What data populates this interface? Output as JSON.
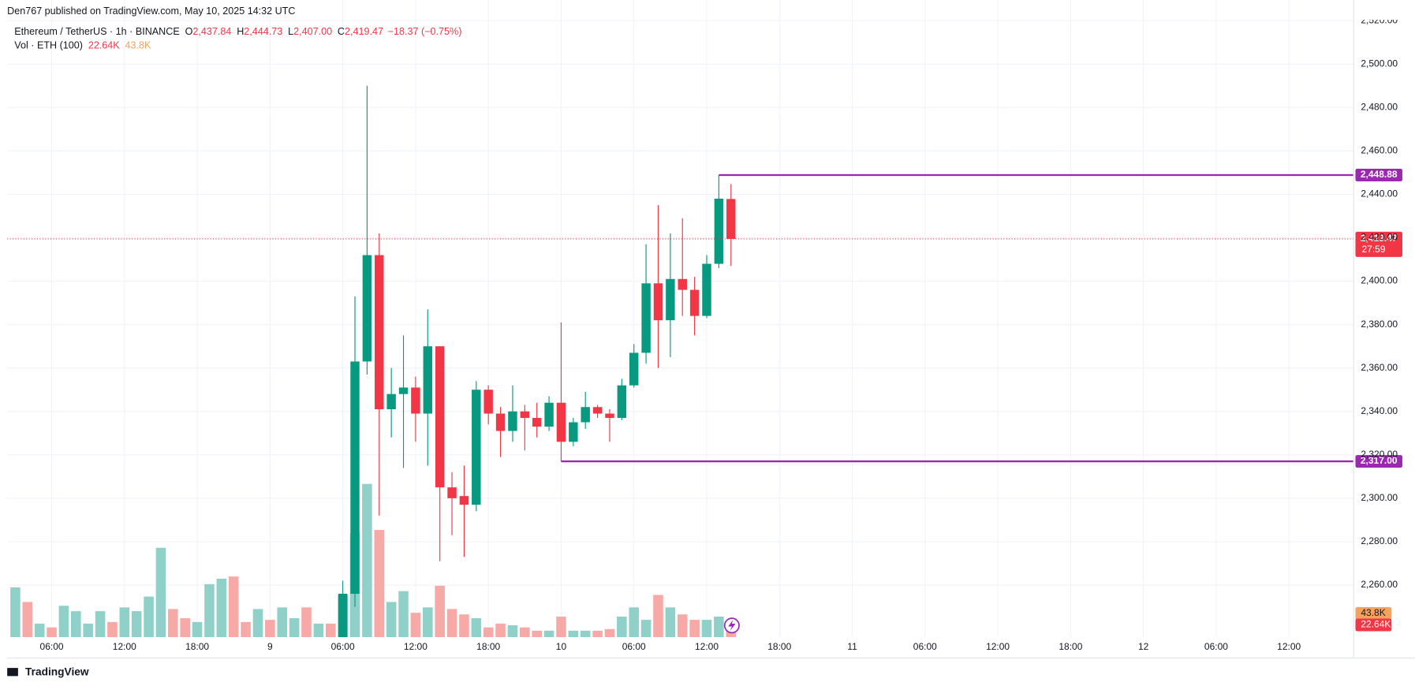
{
  "header": "Den767 published on TradingView.com, May 10, 2025 14:32 UTC",
  "brand": "TradingView",
  "chart_data": {
    "type": "candlestick",
    "legend": {
      "symbol": "Ethereum / TetherUS · 1h · BINANCE",
      "ohlc": [
        {
          "key": "O",
          "text": "2,437.84"
        },
        {
          "key": "H",
          "text": "2,444.73"
        },
        {
          "key": "L",
          "text": "2,407.00"
        },
        {
          "key": "C",
          "text": "2,419.47"
        }
      ],
      "change": "−18.37 (−0.75%)"
    },
    "colors": {
      "up": "#089981",
      "down": "#f23645",
      "volume_up": "#8fd1c8",
      "volume_down": "#f7a9a7",
      "level": "#9c27b0",
      "grid": "#f0f3fa",
      "volume_ma": "#f5a35c"
    },
    "x": [
      "8 03:00",
      "8 04:00",
      "8 05:00",
      "8 06:00",
      "8 07:00",
      "8 08:00",
      "8 09:00",
      "8 10:00",
      "8 11:00",
      "8 12:00",
      "8 13:00",
      "8 14:00",
      "8 15:00",
      "8 16:00",
      "8 17:00",
      "8 18:00",
      "8 19:00",
      "8 20:00",
      "8 21:00",
      "8 22:00",
      "8 23:00",
      "9 00:00",
      "9 01:00",
      "9 02:00",
      "9 03:00",
      "9 04:00",
      "9 05:00",
      "9 06:00",
      "9 07:00",
      "9 08:00",
      "9 09:00",
      "9 10:00",
      "9 11:00",
      "9 12:00",
      "9 13:00",
      "9 14:00",
      "9 15:00",
      "9 16:00",
      "9 17:00",
      "9 18:00",
      "9 19:00",
      "9 20:00",
      "9 21:00",
      "9 22:00",
      "9 23:00",
      "10 00:00",
      "10 01:00",
      "10 02:00",
      "10 03:00",
      "10 04:00",
      "10 05:00",
      "10 06:00",
      "10 07:00",
      "10 08:00",
      "10 09:00",
      "10 10:00",
      "10 11:00",
      "10 12:00",
      "10 13:00",
      "10 14:00"
    ],
    "open": [
      null,
      null,
      null,
      null,
      null,
      null,
      null,
      null,
      null,
      null,
      null,
      null,
      null,
      null,
      null,
      null,
      null,
      null,
      null,
      null,
      null,
      null,
      null,
      null,
      null,
      null,
      null,
      2236,
      2256,
      2363,
      2412,
      2341,
      2348,
      2351,
      2339,
      2370,
      2305,
      2301,
      2297,
      2350,
      2339,
      2331,
      2340,
      2337,
      2333,
      2344,
      2326,
      2335,
      2342,
      2339,
      2337,
      2352,
      2367,
      2399,
      2382,
      2401,
      2396,
      2384,
      2408,
      2437.84
    ],
    "high": [
      null,
      null,
      null,
      null,
      null,
      null,
      null,
      null,
      null,
      null,
      null,
      null,
      null,
      null,
      null,
      null,
      null,
      null,
      null,
      null,
      null,
      null,
      null,
      null,
      null,
      null,
      null,
      2262,
      2393,
      2490,
      2422,
      2360,
      2375,
      2356,
      2387,
      2370,
      2312,
      2315,
      2354,
      2352,
      2342,
      2352,
      2343,
      2344,
      2347,
      2381,
      2337,
      2349,
      2343,
      2341,
      2355,
      2371,
      2417,
      2435,
      2422,
      2429,
      2402,
      2412,
      2448.88,
      2444.73
    ],
    "low": [
      null,
      null,
      null,
      null,
      null,
      null,
      null,
      null,
      null,
      null,
      null,
      null,
      null,
      null,
      null,
      null,
      null,
      null,
      null,
      null,
      null,
      null,
      null,
      null,
      null,
      null,
      null,
      2228,
      2250,
      2357,
      2292,
      2328,
      2314,
      2326,
      2315,
      2271,
      2283,
      2273,
      2294,
      2334,
      2319,
      2326,
      2322,
      2328,
      2331,
      2317,
      2324,
      2332,
      2337,
      2326,
      2336,
      2351,
      2362,
      2360,
      2365,
      2384,
      2375,
      2383,
      2406,
      2407.0
    ],
    "close": [
      null,
      null,
      null,
      null,
      null,
      null,
      null,
      null,
      null,
      null,
      null,
      null,
      null,
      null,
      null,
      null,
      null,
      null,
      null,
      null,
      null,
      null,
      null,
      null,
      null,
      null,
      null,
      2256,
      2363,
      2412,
      2341,
      2348,
      2351,
      2339,
      2370,
      2305,
      2300,
      2297,
      2350,
      2339,
      2331,
      2340,
      2337,
      2333,
      2344,
      2326,
      2335,
      2342,
      2339,
      2337,
      2352,
      2367,
      2399,
      2382,
      2401,
      2396,
      2384,
      2408,
      2438,
      2419.47
    ],
    "volume": {
      "name": "Vol · ETH (100)",
      "values": [
        92,
        65,
        25,
        18,
        58,
        48,
        25,
        48,
        28,
        55,
        48,
        75,
        165,
        52,
        35,
        28,
        98,
        108,
        112,
        28,
        52,
        32,
        55,
        35,
        55,
        25,
        25,
        78,
        192,
        283,
        198,
        65,
        85,
        45,
        55,
        95,
        52,
        42,
        35,
        18,
        25,
        22,
        18,
        12,
        12,
        38,
        12,
        12,
        12,
        15,
        38,
        55,
        32,
        78,
        55,
        42,
        32,
        32,
        38,
        22.64
      ],
      "up": [
        true,
        false,
        true,
        false,
        true,
        true,
        true,
        true,
        false,
        true,
        true,
        true,
        true,
        false,
        false,
        true,
        true,
        true,
        false,
        false,
        true,
        false,
        true,
        true,
        false,
        true,
        false,
        true,
        true,
        true,
        false,
        true,
        true,
        false,
        true,
        false,
        false,
        false,
        true,
        false,
        false,
        true,
        false,
        false,
        true,
        false,
        true,
        true,
        false,
        false,
        true,
        true,
        true,
        false,
        true,
        false,
        false,
        true,
        true,
        false
      ],
      "last_label": "22.64K",
      "ma": {
        "value": 43.8,
        "label": "43.8K"
      },
      "ylim": [
        0,
        290
      ]
    },
    "xlim": [
      "8 02:20",
      "12 17:20"
    ],
    "xticks": [
      {
        "value": "8 06:00",
        "label": "06:00"
      },
      {
        "value": "8 12:00",
        "label": "12:00"
      },
      {
        "value": "8 18:00",
        "label": "18:00"
      },
      {
        "value": "9 00:00",
        "label": "9"
      },
      {
        "value": "9 06:00",
        "label": "06:00"
      },
      {
        "value": "9 12:00",
        "label": "12:00"
      },
      {
        "value": "9 18:00",
        "label": "18:00"
      },
      {
        "value": "10 00:00",
        "label": "10"
      },
      {
        "value": "10 06:00",
        "label": "06:00"
      },
      {
        "value": "10 12:00",
        "label": "12:00"
      },
      {
        "value": "10 18:00",
        "label": "18:00"
      },
      {
        "value": "11 00:00",
        "label": "11"
      },
      {
        "value": "11 06:00",
        "label": "06:00"
      },
      {
        "value": "11 12:00",
        "label": "12:00"
      },
      {
        "value": "11 18:00",
        "label": "18:00"
      },
      {
        "value": "12 00:00",
        "label": "12"
      },
      {
        "value": "12 06:00",
        "label": "06:00"
      },
      {
        "value": "12 12:00",
        "label": "12:00"
      }
    ],
    "ylim": [
      2236,
      2520
    ],
    "yticks": [
      {
        "value": 2260,
        "label": "2,260.00"
      },
      {
        "value": 2280,
        "label": "2,280.00"
      },
      {
        "value": 2300,
        "label": "2,300.00"
      },
      {
        "value": 2320,
        "label": "2,320.00"
      },
      {
        "value": 2340,
        "label": "2,340.00"
      },
      {
        "value": 2360,
        "label": "2,360.00"
      },
      {
        "value": 2380,
        "label": "2,380.00"
      },
      {
        "value": 2400,
        "label": "2,400.00"
      },
      {
        "value": 2420,
        "label": "2,420.00"
      },
      {
        "value": 2440,
        "label": "2,440.00"
      },
      {
        "value": 2460,
        "label": "2,460.00"
      },
      {
        "value": 2480,
        "label": "2,480.00"
      },
      {
        "value": 2500,
        "label": "2,500.00"
      },
      {
        "value": 2520,
        "label": "2,520.00"
      }
    ],
    "grid": true,
    "levels": [
      {
        "value": 2448.88,
        "label": "2,448.88",
        "from": "10 13:00"
      },
      {
        "value": 2317.0,
        "label": "2,317.00",
        "from": "10 00:00"
      }
    ],
    "last_price": {
      "value": 2419.47,
      "label": "2,419.47",
      "countdown": "27:59"
    }
  }
}
